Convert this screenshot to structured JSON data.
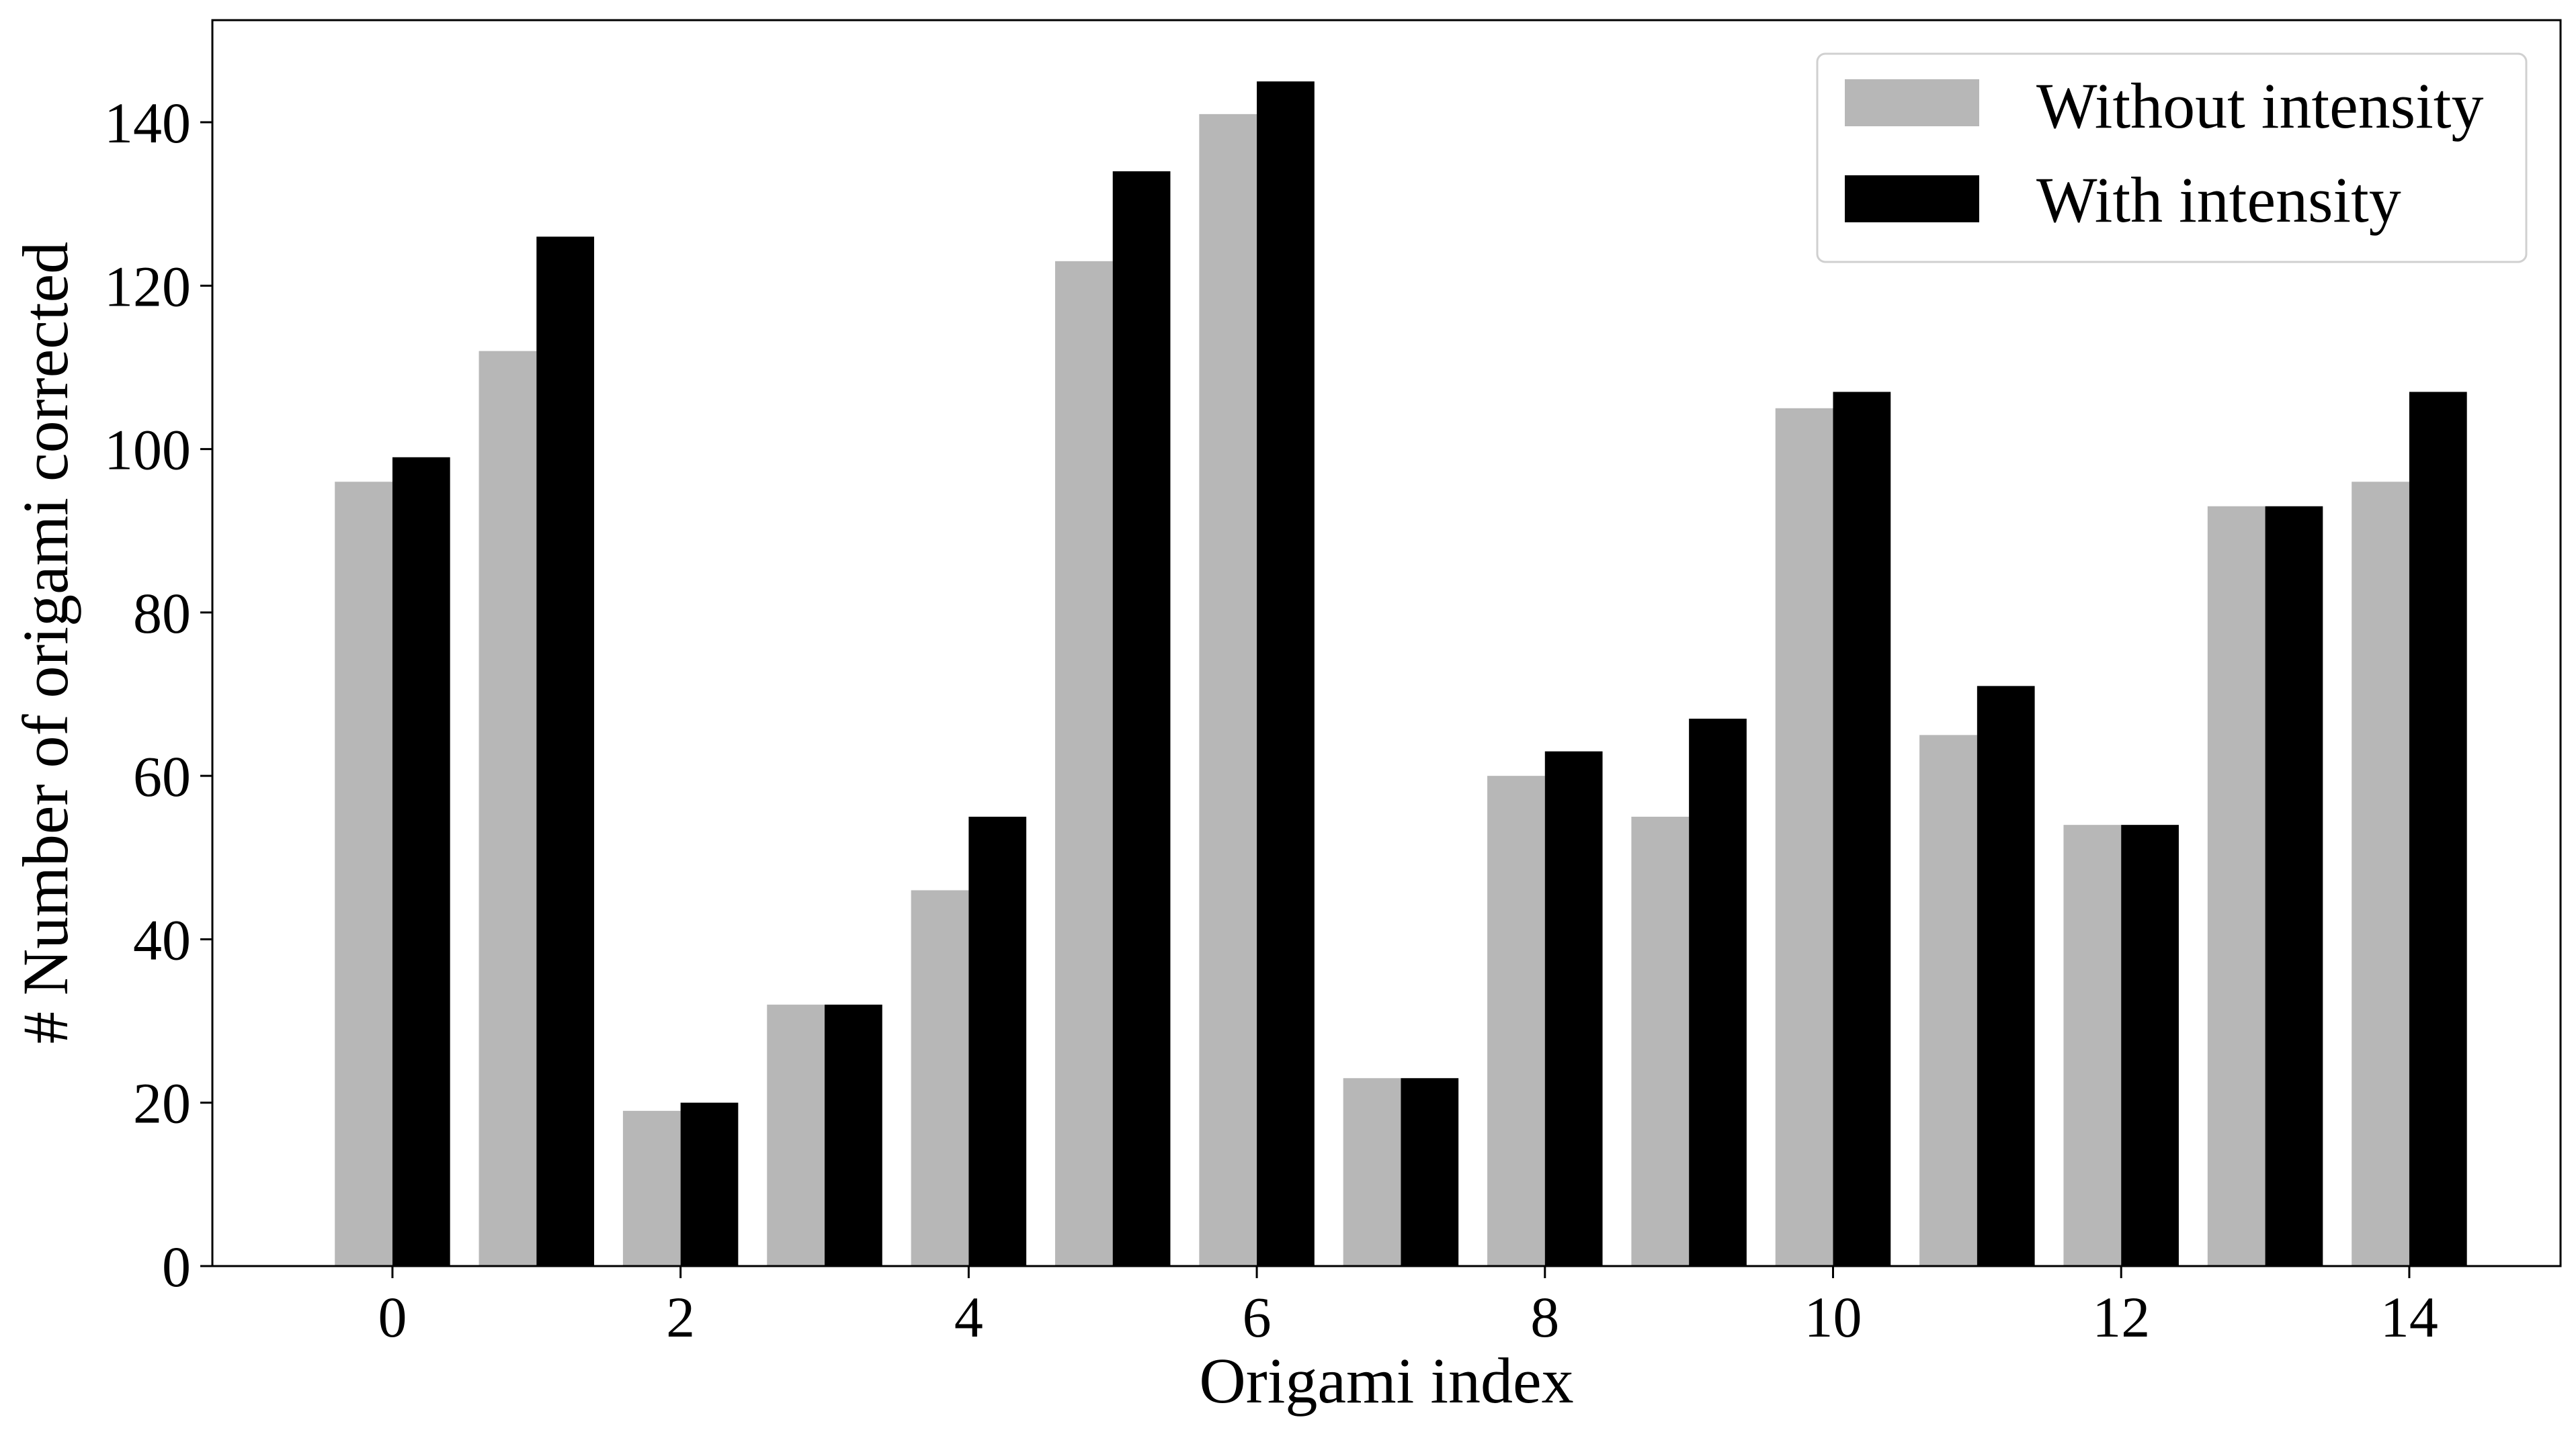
{
  "chart_data": {
    "type": "bar",
    "title": "",
    "xlabel": "Origami index",
    "ylabel": "# Number of origami corrected",
    "categories": [
      0,
      1,
      2,
      3,
      4,
      5,
      6,
      7,
      8,
      9,
      10,
      11,
      12,
      13,
      14
    ],
    "x_tick_labels": [
      "0",
      "2",
      "4",
      "6",
      "8",
      "10",
      "12",
      "14"
    ],
    "y_tick_labels": [
      "0",
      "20",
      "40",
      "60",
      "80",
      "100",
      "120",
      "140"
    ],
    "xlim": [
      -1.25,
      15.05
    ],
    "ylim": [
      0,
      152.5
    ],
    "grid": false,
    "legend_position": "top-right",
    "series": [
      {
        "name": "Without intensity",
        "color": "#b7b7b7",
        "values": [
          96,
          112,
          19,
          32,
          46,
          123,
          141,
          23,
          60,
          55,
          105,
          65,
          54,
          93,
          96
        ]
      },
      {
        "name": "With intensity",
        "color": "#000000",
        "values": [
          99,
          126,
          20,
          32,
          55,
          134,
          145,
          23,
          63,
          67,
          107,
          71,
          54,
          93,
          107
        ]
      }
    ]
  }
}
